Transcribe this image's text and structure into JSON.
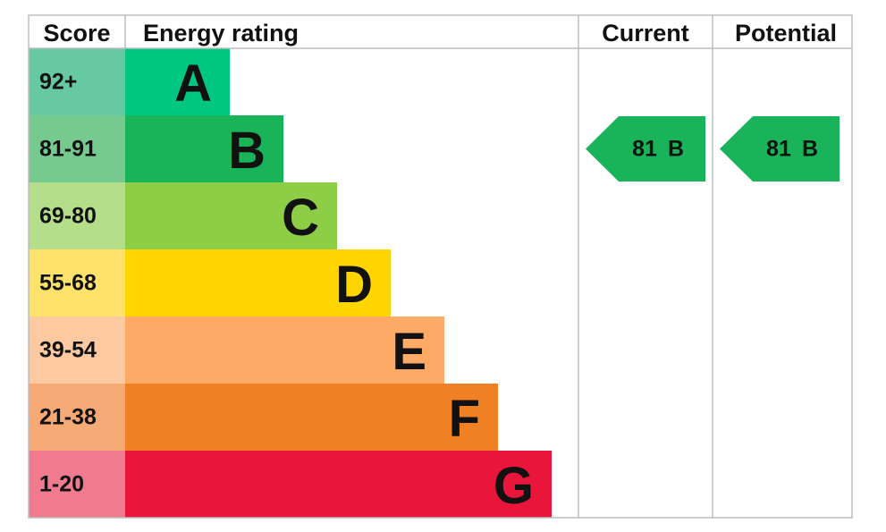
{
  "header": {
    "score": "Score",
    "energy_rating": "Energy rating",
    "current": "Current",
    "potential": "Potential"
  },
  "rows": [
    {
      "score": "92+",
      "rating": "A",
      "color": "#00c781",
      "score_color": "#66c9a2"
    },
    {
      "score": "81-91",
      "rating": "B",
      "color": "#19b459",
      "score_color": "#77ca8f"
    },
    {
      "score": "69-80",
      "rating": "C",
      "color": "#8dce46",
      "score_color": "#b5de8a"
    },
    {
      "score": "55-68",
      "rating": "D",
      "color": "#ffd500",
      "score_color": "#ffe26b"
    },
    {
      "score": "39-54",
      "rating": "E",
      "color": "#fcaa65",
      "score_color": "#fdc9a0"
    },
    {
      "score": "21-38",
      "rating": "F",
      "color": "#ef8023",
      "score_color": "#f5aa75"
    },
    {
      "score": "1-20",
      "rating": "G",
      "color": "#e9153b",
      "score_color": "#f07b8f"
    }
  ],
  "current": {
    "score": 81,
    "rating": "B"
  },
  "potential": {
    "score": 81,
    "rating": "B"
  }
}
